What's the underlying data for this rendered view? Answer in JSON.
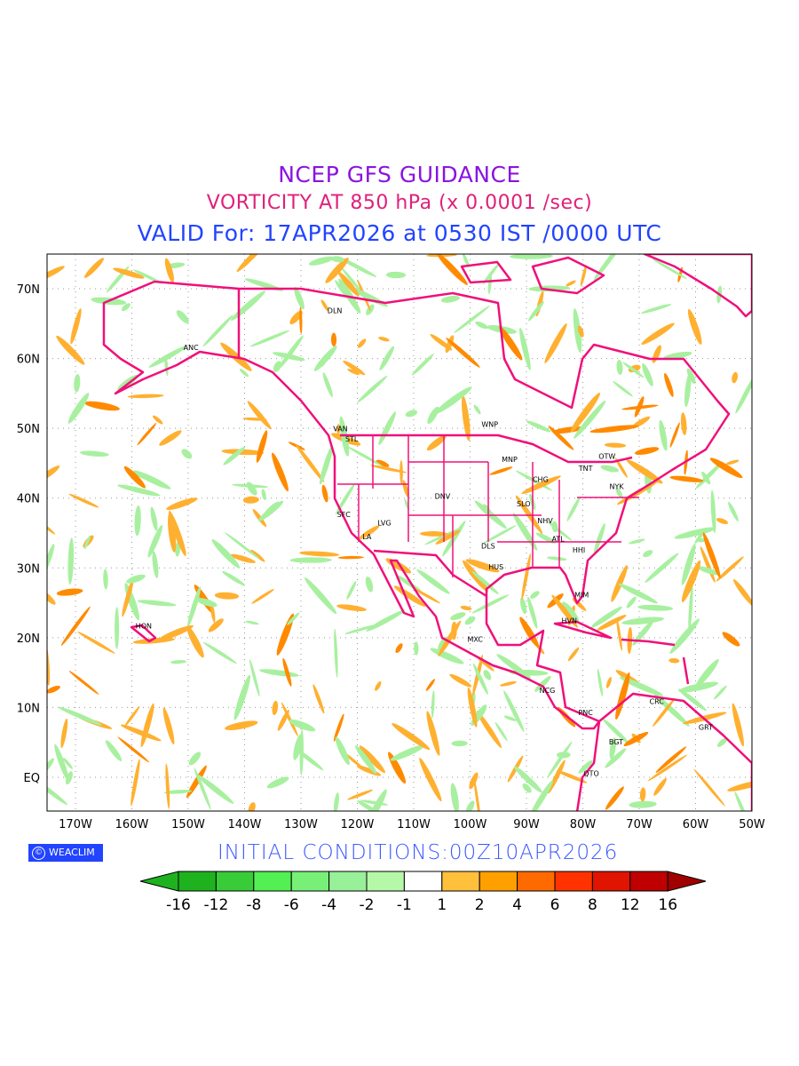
{
  "title": {
    "line1": "NCEP GFS GUIDANCE",
    "line2": "VORTICITY AT 850 hPa (x 0.0001 /sec)",
    "line3": "VALID For: 17APR2026 at 0530 IST /0000 UTC"
  },
  "initial_conditions": "INITIAL  CONDITIONS:00Z10APR2026",
  "badge": {
    "symbol": "©",
    "label": "WEACLIM"
  },
  "axes": {
    "lon_ticks": [
      "170W",
      "160W",
      "150W",
      "140W",
      "130W",
      "120W",
      "110W",
      "100W",
      "90W",
      "80W",
      "70W",
      "60W",
      "50W"
    ],
    "lat_ticks": [
      "70N",
      "60N",
      "50N",
      "40N",
      "30N",
      "20N",
      "10N",
      "EQ"
    ]
  },
  "cities": [
    {
      "name": "DLN",
      "lon": -124,
      "lat": 66.5
    },
    {
      "name": "ANC",
      "lon": -149.5,
      "lat": 61.2
    },
    {
      "name": "VAN",
      "lon": -123,
      "lat": 49.6
    },
    {
      "name": "STL",
      "lon": -121,
      "lat": 48.1
    },
    {
      "name": "WNP",
      "lon": -96.5,
      "lat": 50.2
    },
    {
      "name": "MNP",
      "lon": -93,
      "lat": 45.2
    },
    {
      "name": "OTW",
      "lon": -75.7,
      "lat": 45.6
    },
    {
      "name": "TNT",
      "lon": -79.5,
      "lat": 43.9
    },
    {
      "name": "NYK",
      "lon": -74,
      "lat": 41.3
    },
    {
      "name": "CHG",
      "lon": -87.5,
      "lat": 42.3
    },
    {
      "name": "SLO",
      "lon": -90.5,
      "lat": 38.8
    },
    {
      "name": "DNV",
      "lon": -104.9,
      "lat": 39.9
    },
    {
      "name": "SFC",
      "lon": -122.4,
      "lat": 37.3
    },
    {
      "name": "LVG",
      "lon": -115.2,
      "lat": 36.1
    },
    {
      "name": "LA",
      "lon": -118.3,
      "lat": 34.1
    },
    {
      "name": "NHV",
      "lon": -86.7,
      "lat": 36.4
    },
    {
      "name": "ATL",
      "lon": -84.4,
      "lat": 33.8
    },
    {
      "name": "HHI",
      "lon": -80.7,
      "lat": 32.2
    },
    {
      "name": "DLS",
      "lon": -96.8,
      "lat": 32.8
    },
    {
      "name": "HUS",
      "lon": -95.4,
      "lat": 29.8
    },
    {
      "name": "MIM",
      "lon": -80.2,
      "lat": 25.8
    },
    {
      "name": "HVN",
      "lon": -82.4,
      "lat": 22.1
    },
    {
      "name": "HON",
      "lon": -157.9,
      "lat": 21.3
    },
    {
      "name": "MXC",
      "lon": -99.1,
      "lat": 19.4
    },
    {
      "name": "NCG",
      "lon": -86.3,
      "lat": 12.1
    },
    {
      "name": "PNC",
      "lon": -79.5,
      "lat": 8.9
    },
    {
      "name": "CRC",
      "lon": -66.9,
      "lat": 10.5
    },
    {
      "name": "GRT",
      "lon": -58.2,
      "lat": 6.8
    },
    {
      "name": "BGT",
      "lon": -74.1,
      "lat": 4.7
    },
    {
      "name": "QTO",
      "lon": -78.5,
      "lat": 0.2
    }
  ],
  "colorbar": {
    "labels": [
      "-16",
      "-12",
      "-8",
      "-6",
      "-4",
      "-2",
      "-1",
      "1",
      "2",
      "4",
      "6",
      "8",
      "12",
      "16"
    ],
    "colors": [
      "#1fb21f",
      "#1fb21f",
      "#38cc38",
      "#52f052",
      "#78f078",
      "#98f098",
      "#b5f8a8",
      "#ffffff",
      "#ffc03c",
      "#ffa000",
      "#ff6a00",
      "#ff3200",
      "#e01400",
      "#be0000",
      "#a00000"
    ]
  },
  "style_colors": {
    "boundary": "#f0107a",
    "pos": "#ffa820",
    "neg": "#a0f0a0",
    "title1": "#8a14e0"
  }
}
